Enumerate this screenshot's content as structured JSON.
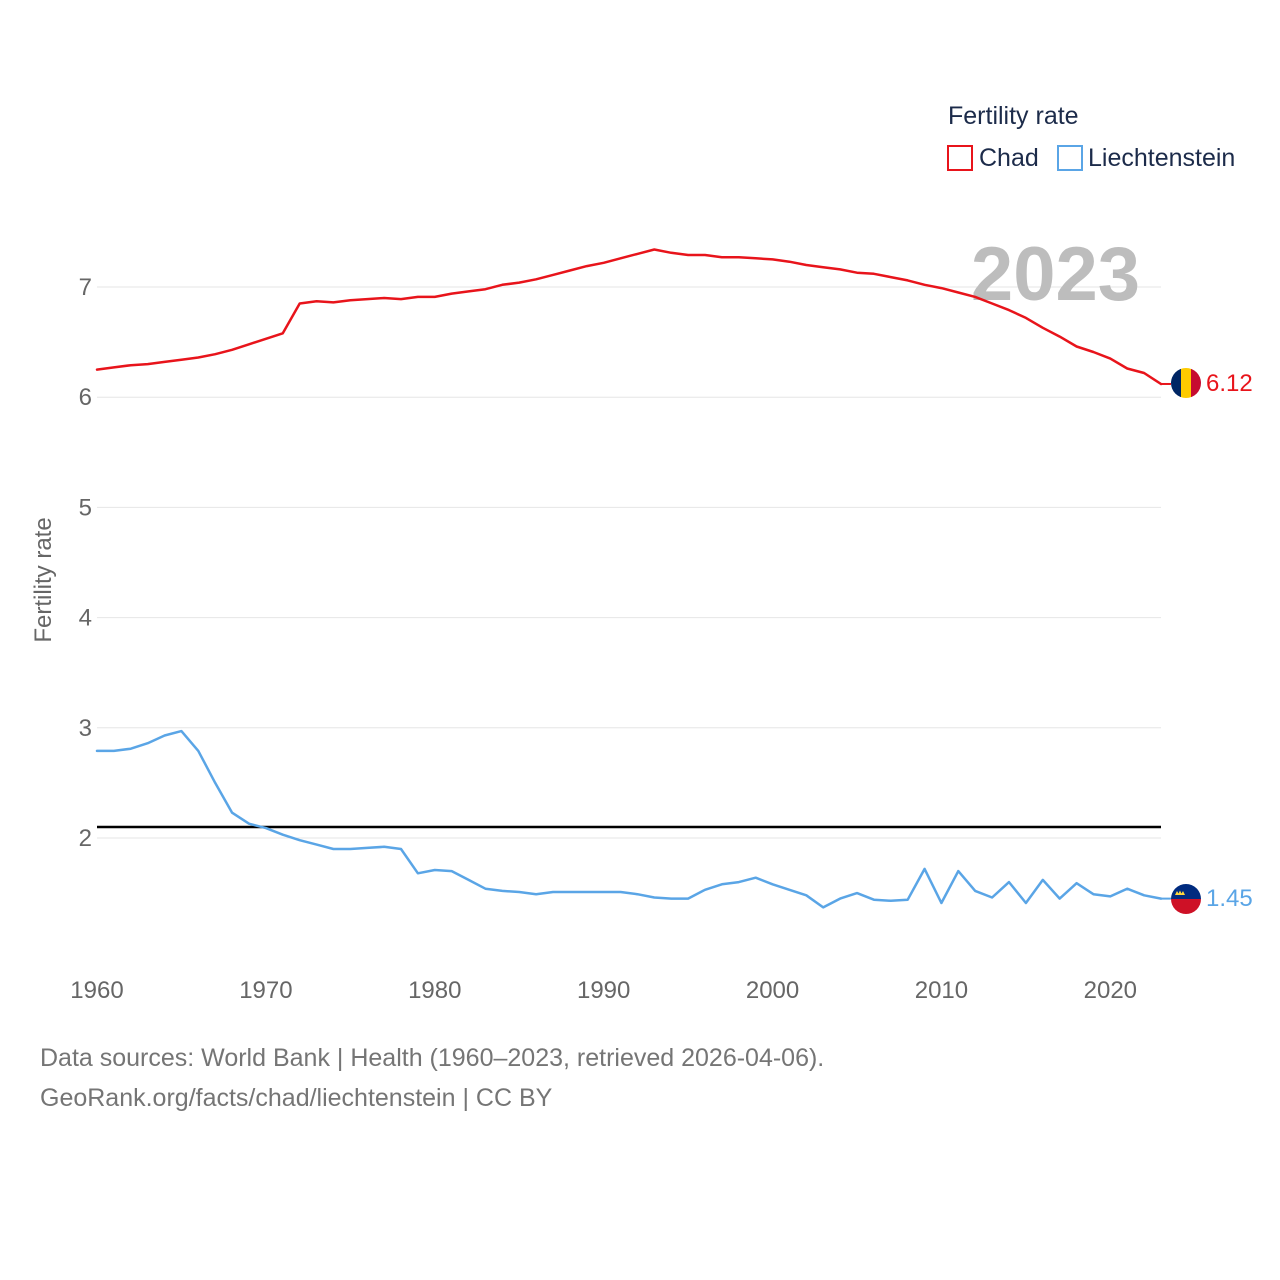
{
  "chart_data": {
    "type": "line",
    "title": "",
    "ylabel": "Fertility rate",
    "xlabel": "",
    "legend_title": "Fertility rate",
    "legend_position": "top-right",
    "highlight_year": "2023",
    "xlim": [
      1960,
      2023
    ],
    "ylim": [
      1.0,
      7.6
    ],
    "x_ticks": [
      1960,
      1970,
      1980,
      1990,
      2000,
      2010,
      2020
    ],
    "y_ticks": [
      2,
      3,
      4,
      5,
      6,
      7
    ],
    "reference_line": {
      "value": 2.1
    },
    "x": [
      1960,
      1961,
      1962,
      1963,
      1964,
      1965,
      1966,
      1967,
      1968,
      1969,
      1970,
      1971,
      1972,
      1973,
      1974,
      1975,
      1976,
      1977,
      1978,
      1979,
      1980,
      1981,
      1982,
      1983,
      1984,
      1985,
      1986,
      1987,
      1988,
      1989,
      1990,
      1991,
      1992,
      1993,
      1994,
      1995,
      1996,
      1997,
      1998,
      1999,
      2000,
      2001,
      2002,
      2003,
      2004,
      2005,
      2006,
      2007,
      2008,
      2009,
      2010,
      2011,
      2012,
      2013,
      2014,
      2015,
      2016,
      2017,
      2018,
      2019,
      2020,
      2021,
      2022,
      2023
    ],
    "series": [
      {
        "name": "Chad",
        "color": "#e8141b",
        "end_label": "6.12",
        "flag": "chad-flag",
        "values": [
          6.25,
          6.27,
          6.29,
          6.3,
          6.32,
          6.34,
          6.36,
          6.39,
          6.43,
          6.48,
          6.53,
          6.58,
          6.85,
          6.87,
          6.86,
          6.88,
          6.89,
          6.9,
          6.89,
          6.91,
          6.91,
          6.94,
          6.96,
          6.98,
          7.02,
          7.04,
          7.07,
          7.11,
          7.15,
          7.19,
          7.22,
          7.26,
          7.3,
          7.34,
          7.31,
          7.29,
          7.29,
          7.27,
          7.27,
          7.26,
          7.25,
          7.23,
          7.2,
          7.18,
          7.16,
          7.13,
          7.12,
          7.09,
          7.06,
          7.02,
          6.99,
          6.95,
          6.91,
          6.85,
          6.79,
          6.72,
          6.63,
          6.55,
          6.46,
          6.41,
          6.35,
          6.26,
          6.22,
          6.12
        ]
      },
      {
        "name": "Liechtenstein",
        "color": "#5aa5e6",
        "end_label": "1.45",
        "flag": "liechtenstein-flag",
        "values": [
          2.79,
          2.79,
          2.81,
          2.86,
          2.93,
          2.97,
          2.79,
          2.5,
          2.23,
          2.13,
          2.09,
          2.03,
          1.98,
          1.94,
          1.9,
          1.9,
          1.91,
          1.92,
          1.9,
          1.68,
          1.71,
          1.7,
          1.62,
          1.54,
          1.52,
          1.51,
          1.49,
          1.51,
          1.51,
          1.51,
          1.51,
          1.51,
          1.49,
          1.46,
          1.45,
          1.45,
          1.53,
          1.58,
          1.6,
          1.64,
          1.58,
          1.53,
          1.48,
          1.37,
          1.45,
          1.5,
          1.44,
          1.43,
          1.44,
          1.72,
          1.41,
          1.7,
          1.52,
          1.46,
          1.6,
          1.41,
          1.62,
          1.45,
          1.59,
          1.49,
          1.47,
          1.54,
          1.48,
          1.45
        ]
      }
    ]
  },
  "footer": {
    "line1": "Data sources: World Bank | Health (1960–2023, retrieved 2026-04-06).",
    "line2": "GeoRank.org/facts/chad/liechtenstein | CC BY"
  }
}
